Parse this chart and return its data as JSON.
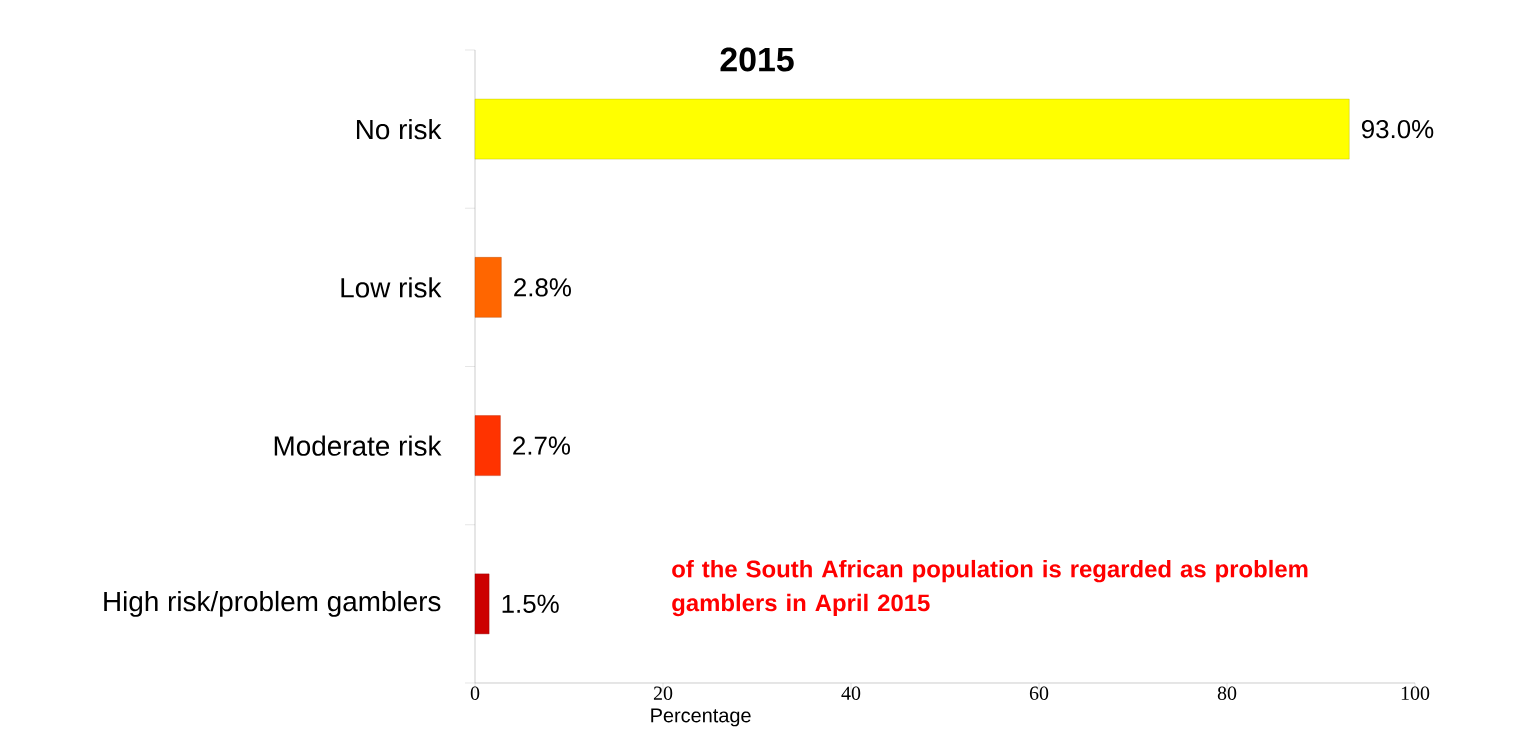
{
  "chart_data": {
    "type": "bar",
    "orientation": "horizontal",
    "title": "2015",
    "xlabel": "Percentage",
    "categories": [
      "No risk",
      "Low risk",
      "Moderate risk",
      "High risk/problem gamblers"
    ],
    "values": [
      93.0,
      2.8,
      2.7,
      1.5
    ],
    "colors": [
      "#ffff00",
      "#ff6600",
      "#ff3300",
      "#cc0000"
    ],
    "value_labels": [
      "93.0%",
      "2.8%",
      "2.7%",
      "1.5%"
    ],
    "xlim": [
      0,
      100
    ],
    "xticks": [
      0,
      20,
      40,
      60,
      80,
      100
    ],
    "annotations": [
      "of the South African population is regarded as problem gamblers in April 2015"
    ]
  }
}
